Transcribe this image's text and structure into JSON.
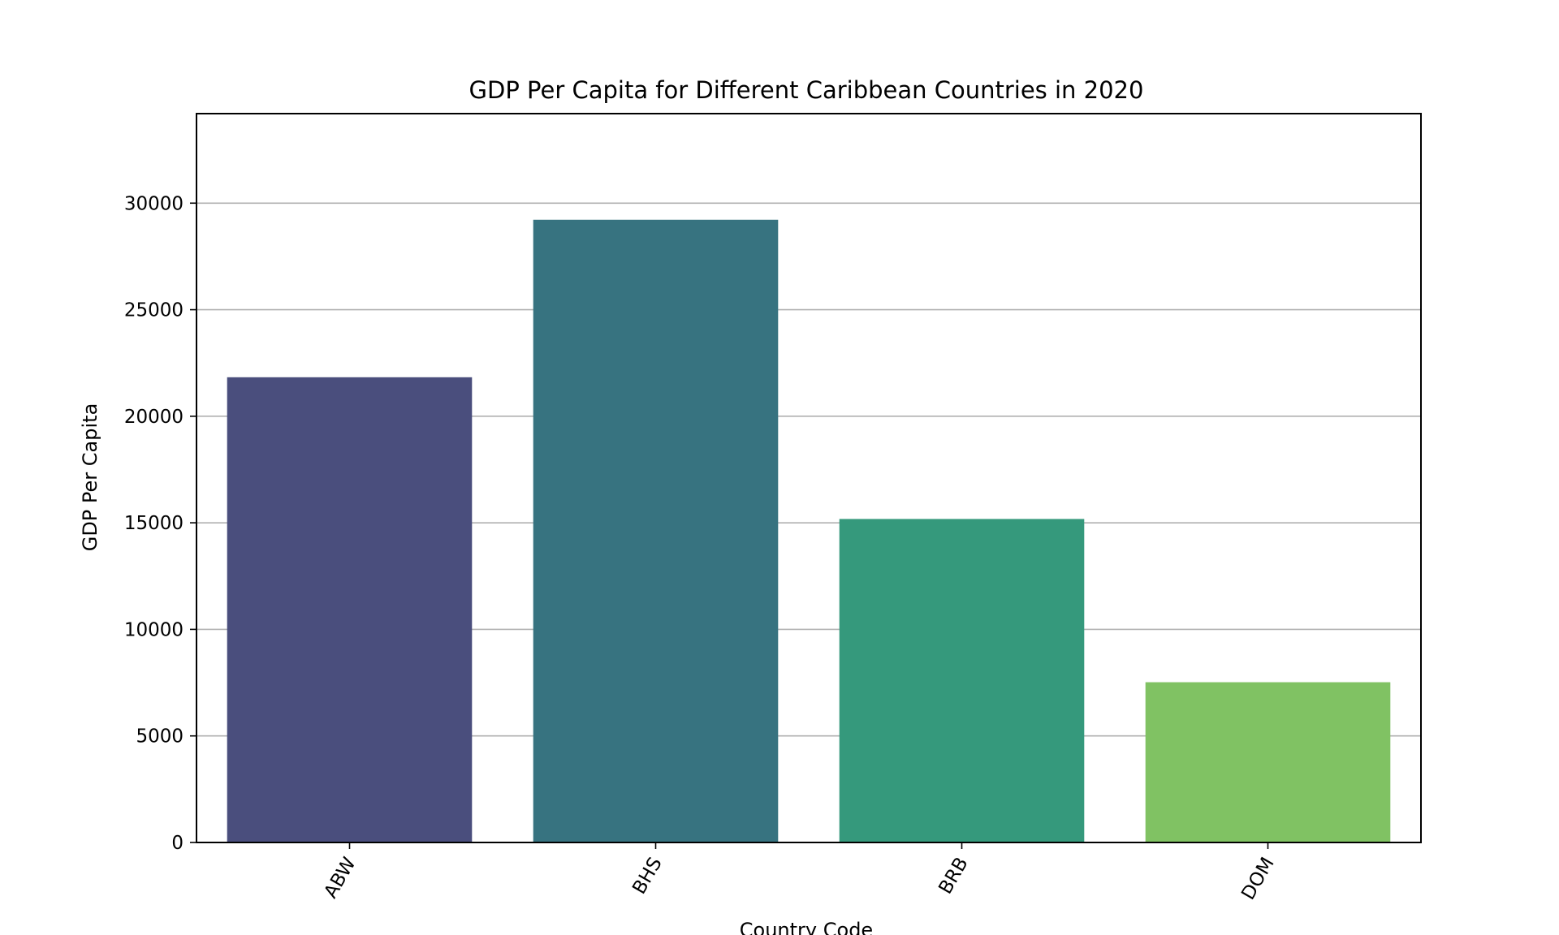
{
  "chart_data": {
    "type": "bar",
    "title": "GDP Per Capita for Different Caribbean Countries in 2020",
    "xlabel": "Country Code",
    "ylabel": "GDP Per Capita",
    "categories": [
      "ABW",
      "BHS",
      "BRB",
      "DOM"
    ],
    "values": [
      21830,
      29220,
      15180,
      7520
    ],
    "colors": [
      "#4a4e7d",
      "#377380",
      "#35997c",
      "#80c263"
    ],
    "ylim": [
      0,
      34200
    ],
    "yticks": [
      0,
      5000,
      10000,
      15000,
      20000,
      25000,
      30000
    ],
    "grid": "horizontal",
    "grid_color": "#b0b0b0",
    "xtick_rotation": "60 degrees"
  }
}
